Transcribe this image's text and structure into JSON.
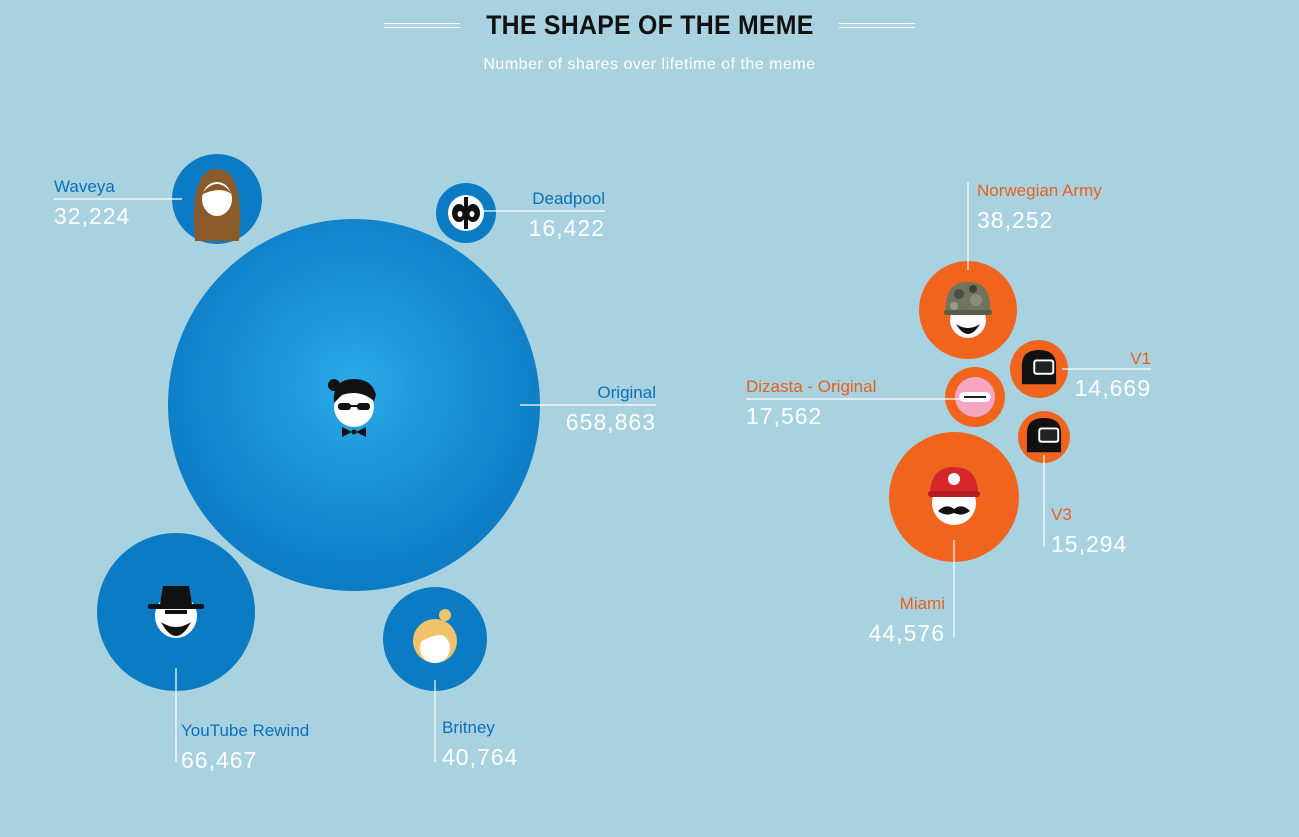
{
  "header": {
    "title": "THE SHAPE OF THE MEME",
    "subtitle": "Number of shares over lifetime of the meme"
  },
  "colors": {
    "background": "#a9d2e1",
    "blue_group": "#0b7bc4",
    "blue_label": "#0b6fb8",
    "orange_group": "#f0641e",
    "orange_label": "#e8601c",
    "value_text": "#ffffff"
  },
  "chart_data": {
    "type": "bubble",
    "title": "THE SHAPE OF THE MEME",
    "subtitle": "Number of shares over lifetime of the meme",
    "series": [
      {
        "group": "blue",
        "points": [
          {
            "name": "Original",
            "value": 658863,
            "icon": "original-dancer-icon"
          },
          {
            "name": "Waveya",
            "value": 32224,
            "icon": "waveya-girl-icon"
          },
          {
            "name": "Deadpool",
            "value": 16422,
            "icon": "deadpool-mask-icon"
          },
          {
            "name": "YouTube Rewind",
            "value": 66467,
            "icon": "hat-man-icon"
          },
          {
            "name": "Britney",
            "value": 40764,
            "icon": "blonde-girl-icon"
          }
        ]
      },
      {
        "group": "orange",
        "points": [
          {
            "name": "Norwegian Army",
            "value": 38252,
            "icon": "camo-helmet-icon"
          },
          {
            "name": "V1",
            "value": 14669,
            "icon": "motorcycle-helmet-icon"
          },
          {
            "name": "Dizasta - Original",
            "value": 17562,
            "icon": "pink-mask-icon"
          },
          {
            "name": "V3",
            "value": 15294,
            "icon": "motorcycle-helmet-icon"
          },
          {
            "name": "Miami",
            "value": 44576,
            "icon": "mario-cap-icon"
          }
        ]
      }
    ],
    "value_labels": [
      "658,863",
      "32,224",
      "16,422",
      "66,467",
      "40,764",
      "38,252",
      "14,669",
      "17,562",
      "15,294",
      "44,576"
    ]
  }
}
